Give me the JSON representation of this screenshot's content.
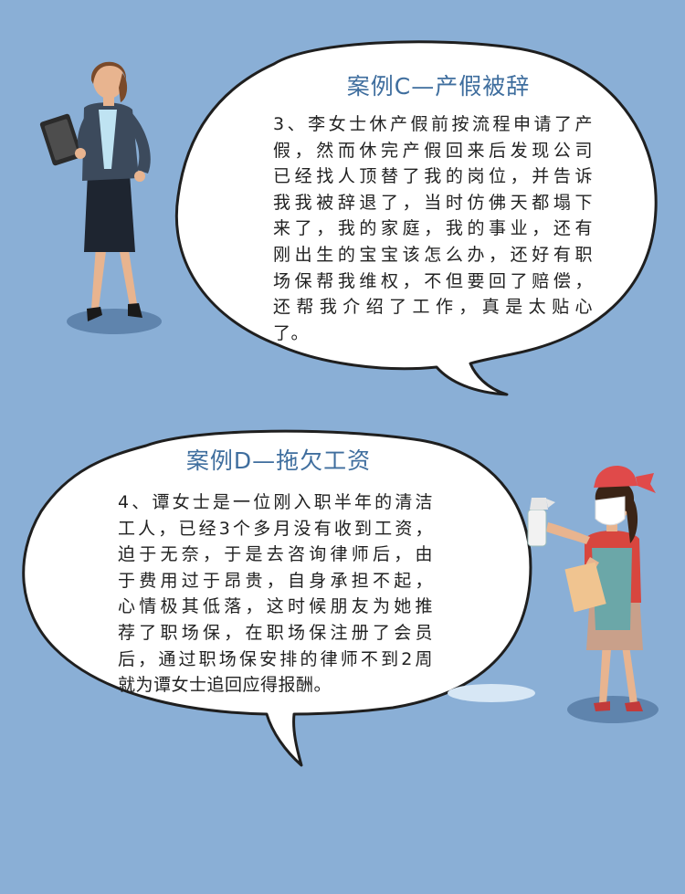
{
  "colors": {
    "background": "#8aafd6",
    "bubble": "#ffffff",
    "bubble_outline": "#1f1f1f",
    "title": "#3f6e9e",
    "body_text": "#222222"
  },
  "case_c": {
    "title": "案例C—产假被辞",
    "lines": [
      "3、李女士休产假前按流程申请了产",
      "假，然而休完产假回来后发现公司",
      "已经找人顶替了我的岗位，并告诉",
      "我我被辞退了，当时仿佛天都塌下",
      "来了，我的家庭，我的事业，还有",
      "刚出生的宝宝该怎么办，还好有职",
      "场保帮我维权，不但要回了赔偿，",
      "还帮我介绍了工作，真是太贴心",
      "了。"
    ]
  },
  "case_d": {
    "title": "案例D—拖欠工资",
    "lines": [
      "4、谭女士是一位刚入职半年的清洁",
      "工人，已经3个多月没有收到工资，",
      "迫于无奈，于是去咨询律师后，由",
      "于费用过于昂贵，自身承担不起，",
      "心情极其低落，这时候朋友为她推",
      "荐了职场保，在职场保注册了会员",
      "后，通过职场保安排的律师不到2周",
      "就为谭女士追回应得报酬。"
    ]
  }
}
